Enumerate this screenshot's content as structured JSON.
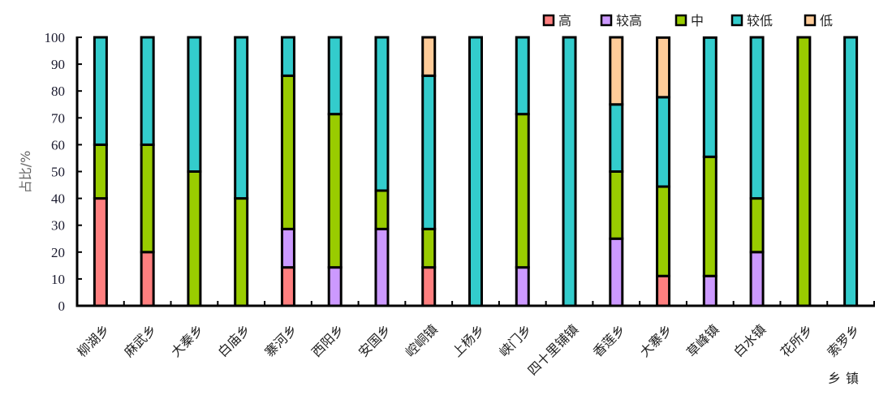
{
  "chart_data": {
    "type": "bar",
    "stacked": true,
    "title": "",
    "xlabel": "乡镇",
    "ylabel": "占比/%",
    "ylim": [
      0,
      100
    ],
    "yticks": [
      "0",
      "10",
      "20",
      "30",
      "40",
      "50",
      "60",
      "70",
      "80",
      "90",
      "100"
    ],
    "legend_position": "top-right",
    "categories": [
      "柳湖乡",
      "麻武乡",
      "大秦乡",
      "白庙乡",
      "寨河乡",
      "西阳乡",
      "安国乡",
      "崆峒镇",
      "上杨乡",
      "峡门乡",
      "四十里铺镇",
      "香莲乡",
      "大寨乡",
      "草峰镇",
      "白水镇",
      "花所乡",
      "索罗乡"
    ],
    "series": [
      {
        "name": "高",
        "color": "#FF7F7F",
        "values": [
          40,
          20,
          0,
          0,
          14.3,
          0,
          0,
          14.3,
          0,
          0,
          0,
          0,
          11.1,
          0,
          0,
          0,
          0
        ]
      },
      {
        "name": "较高",
        "color": "#CC99FF",
        "values": [
          0,
          0,
          0,
          0,
          14.3,
          14.3,
          28.6,
          0,
          0,
          14.3,
          0,
          25,
          0,
          11.1,
          20,
          0,
          0
        ]
      },
      {
        "name": "中",
        "color": "#99CC00",
        "values": [
          20,
          40,
          50,
          40,
          57.1,
          57.1,
          14.3,
          14.3,
          0,
          57.1,
          0,
          25,
          33.3,
          44.4,
          20,
          100,
          0
        ]
      },
      {
        "name": "较低",
        "color": "#33CCCC",
        "values": [
          40,
          40,
          50,
          60,
          14.3,
          28.6,
          57.1,
          57.1,
          100,
          28.6,
          100,
          25,
          33.3,
          44.4,
          60,
          0,
          100
        ]
      },
      {
        "name": "低",
        "color": "#FFCC99",
        "values": [
          0,
          0,
          0,
          0,
          0,
          0,
          0,
          14.3,
          0,
          0,
          0,
          25,
          22.2,
          0,
          0,
          0,
          0
        ]
      }
    ]
  }
}
